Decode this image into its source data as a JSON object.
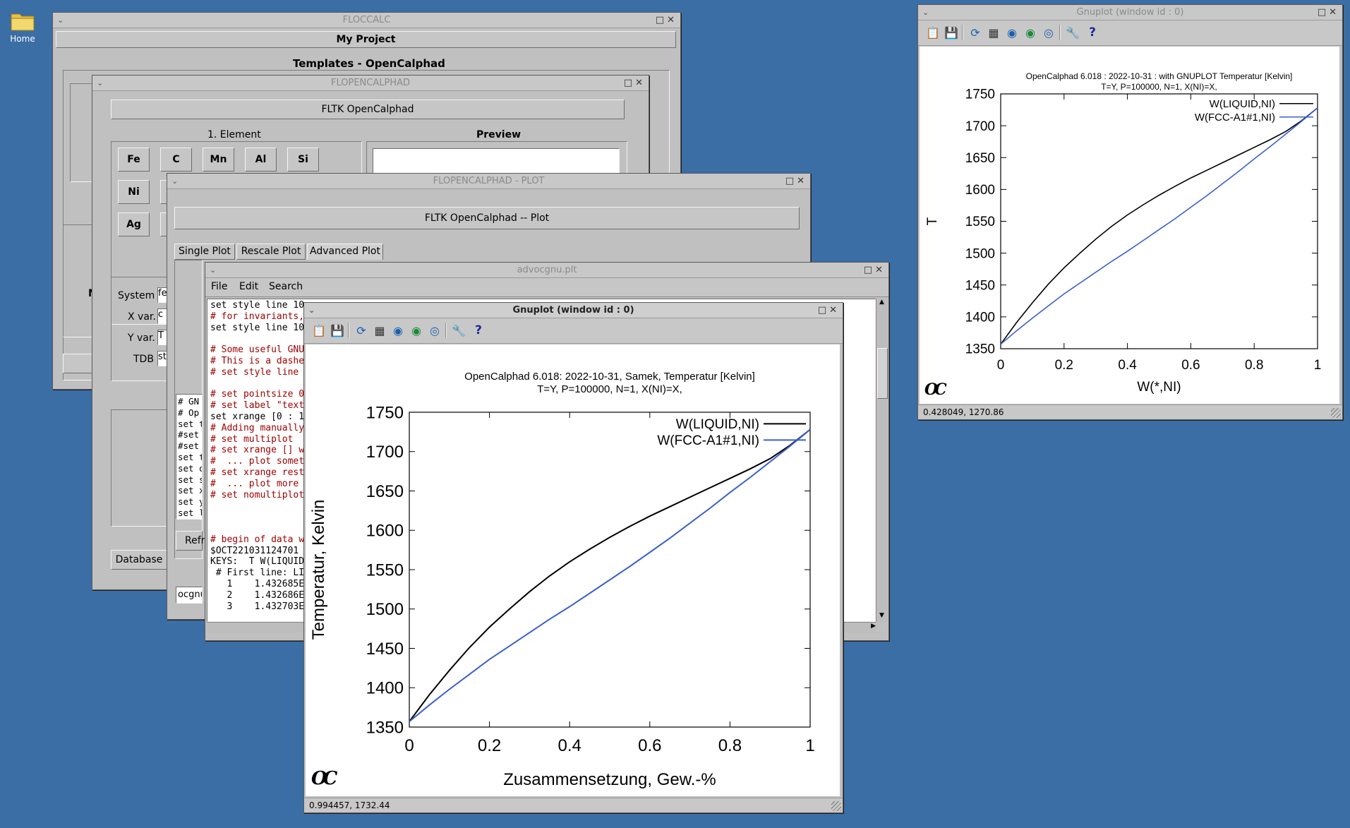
{
  "desktop": {
    "home_label": "Home",
    "bg_color": "#3a6ea5"
  },
  "floccalc": {
    "title": "FLOCCALC",
    "project_button": "My Project",
    "templates_label": "Templates - OpenCalphad"
  },
  "flopencalphad": {
    "title": "FLOPENCALPHAD",
    "header_button": "FLTK OpenCalphad",
    "element_group_label": "1. Element",
    "preview_label": "Preview",
    "elements_row1": [
      "Fe",
      "C",
      "Mn",
      "Al",
      "Si"
    ],
    "elements_row2": [
      "Ni"
    ],
    "elements_row3": [
      "Ag"
    ],
    "system_label": "System",
    "system_value": "fe",
    "xvar_label": "X var.",
    "xvar_value": "c",
    "yvar_label": "Y var.",
    "yvar_value": "T",
    "tdb_label": "TDB",
    "tdb_value": "st",
    "database_button": "Database",
    "partial_m": "M"
  },
  "plotwin": {
    "title": "FLOPENCALPHAD - PLOT",
    "header_button": "FLTK OpenCalphad -- Plot",
    "tabs": [
      "Single Plot",
      "Rescale Plot",
      "Advanced Plot"
    ],
    "left_lines": [
      "# GN",
      "# Op",
      "set te",
      "#set",
      "#set",
      "set tit",
      "set ol",
      "set si",
      "set xl",
      "set yl",
      "set la"
    ],
    "refresh_partial": "Refr",
    "ocgnu_partial": "ocgnu"
  },
  "editor": {
    "title": "advocgnu.plt",
    "menu": [
      "File",
      "Edit",
      "Search"
    ],
    "lines": [
      {
        "t": "set style line 10 ",
        "k": "n"
      },
      {
        "t": "# for invariants,",
        "k": "c"
      },
      {
        "t": "set style line 10",
        "k": "n"
      },
      {
        "t": "",
        "k": "n"
      },
      {
        "t": "# Some useful GNU",
        "k": "c"
      },
      {
        "t": "# This is a dashe",
        "k": "c"
      },
      {
        "t": "# set style line ",
        "k": "c"
      },
      {
        "t": "",
        "k": "n"
      },
      {
        "t": "# set pointsize 0",
        "k": "c"
      },
      {
        "t": "# set label \"text",
        "k": "c"
      },
      {
        "t": "set xrange [0 : 1",
        "k": "n"
      },
      {
        "t": "# Adding manually",
        "k": "c"
      },
      {
        "t": "# set multiplot",
        "k": "c"
      },
      {
        "t": "# set xrange [] w",
        "k": "c"
      },
      {
        "t": "#  ... plot somet",
        "k": "c"
      },
      {
        "t": "# set xrange rest",
        "k": "c"
      },
      {
        "t": "#  ... plot more ",
        "k": "c"
      },
      {
        "t": "# set nomultiplot",
        "k": "c"
      },
      {
        "t": "",
        "k": "n"
      },
      {
        "t": "",
        "k": "n"
      },
      {
        "t": "",
        "k": "n"
      },
      {
        "t": "# begin of data w",
        "k": "c"
      },
      {
        "t": "$OCT221031124701 ",
        "k": "n"
      },
      {
        "t": "KEYS:  T W(LIQUID",
        "k": "n"
      },
      {
        "t": " # First line: LI",
        "k": "n"
      },
      {
        "t": "   1    1.432685E",
        "k": "n"
      },
      {
        "t": "   2    1.432686E",
        "k": "n"
      },
      {
        "t": "   3    1.432703E",
        "k": "n"
      }
    ]
  },
  "toolbar_icons": [
    "copy-icon",
    "save-icon",
    "replot-icon",
    "grid-icon",
    "zoom-prev-icon",
    "zoom-next-icon",
    "zoom-unzoom-icon",
    "config-wrench-icon",
    "help-icon"
  ],
  "gnuplot_main": {
    "title": "Gnuplot (window id : 0)",
    "status": "0.994457,  1732.44",
    "logo": "OC"
  },
  "gnuplot_small": {
    "title": "Gnuplot (window id : 0)",
    "status": "0.428049,  1270.86",
    "logo": "OC"
  },
  "chart_data": [
    {
      "type": "line",
      "title": "OpenCalphad 6.018: 2022-10-31, Samek,  Temperatur [Kelvin]",
      "subtitle": "T=Y,  P=100000, N=1, X(NI)=X,",
      "xlabel": "Zusammensetzung, Gew.-%",
      "ylabel": "Temperatur, Kelvin",
      "xlim": [
        0,
        1
      ],
      "ylim": [
        1350,
        1750
      ],
      "xticks": [
        0,
        0.2,
        0.4,
        0.6,
        0.8,
        1
      ],
      "yticks": [
        1350,
        1400,
        1450,
        1500,
        1550,
        1600,
        1650,
        1700,
        1750
      ],
      "grid": false,
      "legend": "top-right",
      "series": [
        {
          "name": "W(LIQUID,NI)",
          "color": "#000000",
          "x": [
            0,
            0.05,
            0.1,
            0.15,
            0.2,
            0.25,
            0.3,
            0.35,
            0.4,
            0.45,
            0.5,
            0.55,
            0.6,
            0.65,
            0.7,
            0.75,
            0.8,
            0.85,
            0.9,
            0.95,
            1
          ],
          "y": [
            1357,
            1391,
            1422,
            1451,
            1477,
            1500,
            1522,
            1542,
            1560,
            1576,
            1591,
            1605,
            1618,
            1630,
            1642,
            1654,
            1666,
            1678,
            1691,
            1708,
            1728
          ]
        },
        {
          "name": "W(FCC-A1#1,NI)",
          "color": "#3a5fcd",
          "x": [
            0,
            0.05,
            0.1,
            0.15,
            0.2,
            0.25,
            0.3,
            0.35,
            0.4,
            0.45,
            0.5,
            0.55,
            0.6,
            0.65,
            0.7,
            0.75,
            0.8,
            0.85,
            0.9,
            0.95,
            1
          ],
          "y": [
            1357,
            1378,
            1398,
            1417,
            1436,
            1453,
            1470,
            1487,
            1503,
            1520,
            1537,
            1554,
            1572,
            1590,
            1609,
            1628,
            1648,
            1667,
            1687,
            1707,
            1728
          ]
        }
      ]
    },
    {
      "type": "line",
      "title": "OpenCalphad   6.018 :  2022-10-31 : with GNUPLOT Temperatur [Kelvin]",
      "subtitle": "T=Y,  P=100000, N=1, X(NI)=X,",
      "xlabel": "W(*,NI)",
      "ylabel": "T",
      "xlim": [
        0,
        1
      ],
      "ylim": [
        1350,
        1750
      ],
      "xticks": [
        0,
        0.2,
        0.4,
        0.6,
        0.8,
        1
      ],
      "yticks": [
        1350,
        1400,
        1450,
        1500,
        1550,
        1600,
        1650,
        1700,
        1750
      ],
      "grid": false,
      "legend": "top-right",
      "series": [
        {
          "name": "W(LIQUID,NI)",
          "color": "#000000",
          "x": [
            0,
            0.05,
            0.1,
            0.15,
            0.2,
            0.25,
            0.3,
            0.35,
            0.4,
            0.45,
            0.5,
            0.55,
            0.6,
            0.65,
            0.7,
            0.75,
            0.8,
            0.85,
            0.9,
            0.95,
            1
          ],
          "y": [
            1357,
            1391,
            1422,
            1451,
            1477,
            1500,
            1522,
            1542,
            1560,
            1576,
            1591,
            1605,
            1618,
            1630,
            1642,
            1654,
            1666,
            1678,
            1691,
            1708,
            1728
          ]
        },
        {
          "name": "W(FCC-A1#1,NI)",
          "color": "#3a5fcd",
          "x": [
            0,
            0.05,
            0.1,
            0.15,
            0.2,
            0.25,
            0.3,
            0.35,
            0.4,
            0.45,
            0.5,
            0.55,
            0.6,
            0.65,
            0.7,
            0.75,
            0.8,
            0.85,
            0.9,
            0.95,
            1
          ],
          "y": [
            1357,
            1378,
            1398,
            1417,
            1436,
            1453,
            1470,
            1487,
            1503,
            1520,
            1537,
            1554,
            1572,
            1590,
            1609,
            1628,
            1648,
            1667,
            1687,
            1707,
            1728
          ]
        }
      ]
    }
  ]
}
